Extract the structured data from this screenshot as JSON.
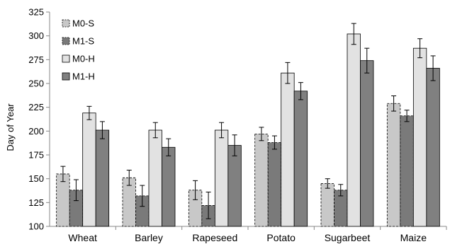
{
  "chart_data": {
    "type": "bar",
    "ylabel": "Day of Year",
    "xlabel": "",
    "ylim": [
      100,
      325
    ],
    "y_ticks": [
      100,
      125,
      150,
      175,
      200,
      225,
      250,
      275,
      300,
      325
    ],
    "grid": false,
    "legend_position": "top-left",
    "categories": [
      "Wheat",
      "Barley",
      "Rapeseed",
      "Potato",
      "Sugarbeet",
      "Maize"
    ],
    "series": [
      {
        "name": "M0-S",
        "fill": "#c8c8c8",
        "dashed": true,
        "values": [
          155,
          151,
          138,
          197,
          145,
          229
        ],
        "errors": [
          8,
          8,
          10,
          7,
          5,
          8
        ]
      },
      {
        "name": "M1-S",
        "fill": "#7a7a7a",
        "dashed": true,
        "values": [
          138,
          132,
          122,
          188,
          138,
          216
        ],
        "errors": [
          11,
          11,
          14,
          7,
          6,
          6
        ]
      },
      {
        "name": "M0-H",
        "fill": "#e2e2e2",
        "dashed": false,
        "values": [
          219,
          201,
          201,
          261,
          302,
          287
        ],
        "errors": [
          7,
          8,
          8,
          11,
          11,
          10
        ]
      },
      {
        "name": "M1-H",
        "fill": "#808080",
        "dashed": false,
        "values": [
          201,
          183,
          185,
          242,
          274,
          266
        ],
        "errors": [
          9,
          9,
          11,
          9,
          13,
          13
        ]
      }
    ]
  }
}
